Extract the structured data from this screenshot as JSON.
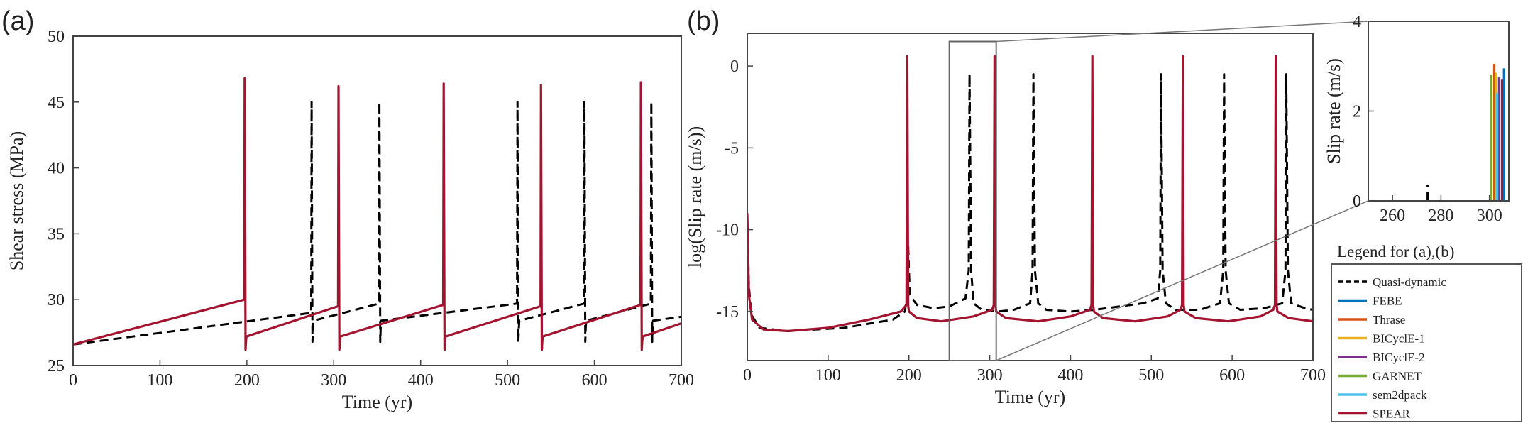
{
  "chart_data": [
    {
      "panel": "(a)",
      "type": "line",
      "xlabel": "Time (yr)",
      "ylabel": "Shear stress (MPa)",
      "xlim": [
        0,
        700
      ],
      "ylim": [
        25,
        50
      ],
      "xticks": [
        0,
        100,
        200,
        300,
        400,
        500,
        600,
        700
      ],
      "yticks": [
        25,
        30,
        35,
        40,
        45,
        50
      ],
      "grid": false,
      "series": [
        {
          "name": "Quasi-dynamic",
          "style": "dashed",
          "color": "#000000",
          "x": [
            0,
            274,
            274.5,
            275.5,
            276,
            276.5,
            352,
            352.5,
            353.5,
            354,
            354.5,
            511,
            511.5,
            512.5,
            513,
            513.5,
            588,
            588.5,
            589.5,
            590,
            590.5,
            665,
            665.5,
            666.5,
            667,
            667.5,
            700
          ],
          "y": [
            26.6,
            29.0,
            45.0,
            26.8,
            27.8,
            28.4,
            29.7,
            45.0,
            26.8,
            27.8,
            28.4,
            29.7,
            45.0,
            26.8,
            27.8,
            28.4,
            29.7,
            45.0,
            26.8,
            27.8,
            28.4,
            29.7,
            45.0,
            26.8,
            27.8,
            28.4,
            28.7
          ]
        },
        {
          "name": "SPEAR",
          "style": "solid",
          "color": "#a2142f",
          "x": [
            0,
            197,
            197.5,
            198.5,
            199,
            199.5,
            305,
            305.5,
            306.5,
            307,
            307.5,
            426,
            426.5,
            427.5,
            428,
            428.5,
            538,
            538.5,
            539.5,
            540,
            540.5,
            653,
            653.5,
            654.5,
            655,
            655.5,
            700
          ],
          "y": [
            26.6,
            30.0,
            46.8,
            26.2,
            26.8,
            27.2,
            29.5,
            46.2,
            26.2,
            26.8,
            27.2,
            29.6,
            46.4,
            26.2,
            26.8,
            27.2,
            29.5,
            46.3,
            26.2,
            26.8,
            27.2,
            29.6,
            46.5,
            26.2,
            26.8,
            27.2,
            28.2
          ]
        }
      ]
    },
    {
      "panel": "(b)",
      "type": "line",
      "xlabel": "Time (yr)",
      "ylabel": "log(Slip rate (m/s))",
      "xlim": [
        0,
        700
      ],
      "ylim": [
        -18,
        2
      ],
      "xticks": [
        0,
        100,
        200,
        300,
        400,
        500,
        600,
        700
      ],
      "yticks": [
        -15,
        -10,
        -5,
        0
      ],
      "grid": false,
      "series": [
        {
          "name": "Quasi-dynamic",
          "style": "dashed",
          "color": "#000000",
          "x": [
            0,
            2,
            5,
            15,
            50,
            120,
            180,
            195,
            198,
            199,
            201,
            210,
            230,
            250,
            270,
            274,
            275,
            277,
            280,
            290,
            310,
            330,
            350,
            353,
            354,
            356,
            360,
            370,
            400,
            430,
            460,
            490,
            508,
            511,
            512,
            514,
            518,
            530,
            560,
            585,
            589,
            590,
            592,
            596,
            610,
            640,
            662,
            666,
            667,
            669,
            673,
            690,
            700
          ],
          "y": [
            -9.5,
            -13.5,
            -15.2,
            -16.0,
            -16.2,
            -16.0,
            -15.5,
            -15.0,
            -14.0,
            -11.0,
            -14.0,
            -14.6,
            -14.8,
            -14.7,
            -14.2,
            -12.5,
            -0.5,
            -12.5,
            -14.5,
            -14.9,
            -15.0,
            -14.9,
            -14.5,
            -12.5,
            -0.5,
            -12.5,
            -14.5,
            -14.9,
            -15.0,
            -14.9,
            -14.7,
            -14.5,
            -14.2,
            -12.5,
            -0.5,
            -12.5,
            -14.5,
            -14.9,
            -14.9,
            -14.5,
            -12.5,
            -0.5,
            -12.5,
            -14.5,
            -14.9,
            -14.8,
            -14.5,
            -12.5,
            -0.5,
            -12.5,
            -14.5,
            -14.8,
            -14.9
          ]
        },
        {
          "name": "SPEAR",
          "style": "solid",
          "color": "#a2142f",
          "x": [
            0,
            2,
            6,
            20,
            50,
            100,
            150,
            190,
            197,
            198,
            199,
            200,
            210,
            240,
            280,
            303,
            305,
            306,
            307,
            308,
            320,
            360,
            400,
            424,
            426,
            427,
            428,
            429,
            440,
            480,
            520,
            536,
            538,
            539,
            540,
            541,
            555,
            595,
            635,
            651,
            653,
            654,
            655,
            656,
            670,
            700
          ],
          "y": [
            -9.0,
            -14.0,
            -15.5,
            -16.1,
            -16.2,
            -16.0,
            -15.5,
            -15.0,
            -14.6,
            0.6,
            -14.6,
            -15.0,
            -15.4,
            -15.6,
            -15.3,
            -14.9,
            -14.6,
            0.6,
            -14.6,
            -15.0,
            -15.4,
            -15.6,
            -15.3,
            -14.9,
            -14.6,
            0.6,
            -14.6,
            -15.0,
            -15.4,
            -15.6,
            -15.3,
            -14.9,
            -14.6,
            0.6,
            -14.6,
            -15.0,
            -15.4,
            -15.6,
            -15.3,
            -14.9,
            -14.6,
            0.6,
            -14.6,
            -15.0,
            -15.4,
            -15.6
          ]
        }
      ]
    },
    {
      "panel": "inset",
      "type": "line",
      "xlabel": "",
      "ylabel": "Slip rate (m/s)",
      "xlim": [
        250,
        308
      ],
      "ylim": [
        0,
        4
      ],
      "xticks": [
        260,
        280,
        300
      ],
      "yticks": [
        0,
        2,
        4
      ],
      "grid": false,
      "series": [
        {
          "name": "Quasi-dynamic",
          "style": "dashed",
          "color": "#000000",
          "x": [
            274.5,
            274.5
          ],
          "y": [
            0,
            0.35
          ]
        },
        {
          "name": "FEBE",
          "style": "solid",
          "color": "#0072bd",
          "x": [
            306,
            306
          ],
          "y": [
            0,
            2.95
          ]
        },
        {
          "name": "Thrase",
          "style": "solid",
          "color": "#d95319",
          "x": [
            302,
            302
          ],
          "y": [
            0,
            3.05
          ]
        },
        {
          "name": "BICyclE-1",
          "style": "solid",
          "color": "#edb120",
          "x": [
            302.6,
            302.6
          ],
          "y": [
            0,
            2.85
          ]
        },
        {
          "name": "BICyclE-2",
          "style": "solid",
          "color": "#7e2f8e",
          "x": [
            304,
            304
          ],
          "y": [
            0,
            2.75
          ]
        },
        {
          "name": "GARNET",
          "style": "solid",
          "color": "#77ac30",
          "x": [
            300.8,
            300.8
          ],
          "y": [
            0,
            2.8
          ]
        },
        {
          "name": "sem2dpack",
          "style": "solid",
          "color": "#4dbeee",
          "x": [
            303.2,
            303.2
          ],
          "y": [
            0,
            2.4
          ]
        },
        {
          "name": "SPEAR",
          "style": "solid",
          "color": "#a2142f",
          "x": [
            305.2,
            305.2
          ],
          "y": [
            0,
            2.7
          ]
        }
      ]
    }
  ],
  "panel_labels": {
    "a": "(a)",
    "b": "(b)"
  },
  "legend": {
    "title": "Legend for (a),(b)",
    "placement": "right",
    "entries": [
      {
        "name": "Quasi-dynamic",
        "color": "#000000",
        "style": "dashed"
      },
      {
        "name": "FEBE",
        "color": "#0072bd",
        "style": "solid"
      },
      {
        "name": "Thrase",
        "color": "#d95319",
        "style": "solid"
      },
      {
        "name": "BICyclE-1",
        "color": "#edb120",
        "style": "solid"
      },
      {
        "name": "BICyclE-2",
        "color": "#7e2f8e",
        "style": "solid"
      },
      {
        "name": "GARNET",
        "color": "#77ac30",
        "style": "solid"
      },
      {
        "name": "sem2dpack",
        "color": "#4dbeee",
        "style": "solid"
      },
      {
        "name": "SPEAR",
        "color": "#a2142f",
        "style": "solid"
      }
    ]
  },
  "colors": {
    "FEBE": "#0072bd",
    "Thrase": "#d95319",
    "BICyclE-1": "#edb120",
    "BICyclE-2": "#7e2f8e",
    "GARNET": "#77ac30",
    "sem2dpack": "#4dbeee",
    "SPEAR": "#a2142f",
    "Quasi-dynamic": "#000000"
  }
}
